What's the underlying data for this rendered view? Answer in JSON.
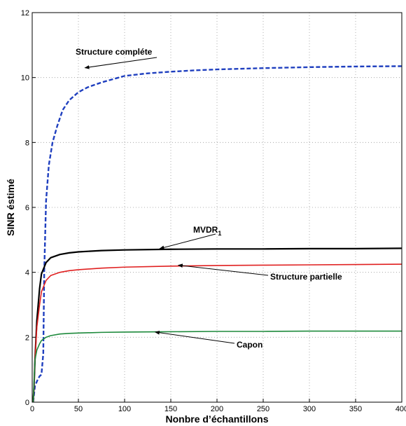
{
  "chart_data": {
    "type": "line",
    "xlabel": "Nonbre d’échantillons",
    "ylabel": "SINR éstimé",
    "xlim": [
      0,
      400
    ],
    "ylim": [
      0,
      12
    ],
    "xticks": [
      0,
      50,
      100,
      150,
      200,
      250,
      300,
      350,
      400
    ],
    "yticks": [
      0,
      2,
      4,
      6,
      8,
      10,
      12
    ],
    "grid": true,
    "series": [
      {
        "name": "Structure compléte",
        "color": "#1f3fbf",
        "dash": "dashed",
        "x": [
          1,
          3,
          6,
          8,
          10,
          12,
          13,
          15,
          18,
          22,
          27,
          33,
          40,
          50,
          60,
          75,
          90,
          100,
          125,
          150,
          175,
          200,
          250,
          300,
          350,
          400
        ],
        "y": [
          0,
          0.5,
          0.7,
          0.8,
          0.85,
          1.5,
          4.0,
          6.2,
          7.3,
          8.0,
          8.5,
          9.0,
          9.3,
          9.55,
          9.7,
          9.85,
          9.97,
          10.05,
          10.13,
          10.18,
          10.22,
          10.25,
          10.29,
          10.32,
          10.34,
          10.35
        ]
      },
      {
        "name": "MVDR1",
        "color": "#000000",
        "dash": "solid",
        "x": [
          1,
          2,
          3,
          5,
          8,
          10,
          15,
          20,
          30,
          40,
          50,
          75,
          100,
          150,
          200,
          250,
          300,
          350,
          400
        ],
        "y": [
          0,
          0.5,
          1.3,
          2.5,
          3.5,
          3.95,
          4.3,
          4.45,
          4.55,
          4.6,
          4.63,
          4.67,
          4.69,
          4.71,
          4.72,
          4.72,
          4.73,
          4.73,
          4.74
        ]
      },
      {
        "name": "Structure partielle",
        "color": "#e02020",
        "dash": "solid",
        "x": [
          1,
          2,
          3,
          5,
          8,
          10,
          15,
          20,
          30,
          40,
          50,
          75,
          100,
          150,
          200,
          250,
          300,
          350,
          400
        ],
        "y": [
          0,
          0.5,
          1.3,
          2.3,
          3.0,
          3.4,
          3.75,
          3.9,
          4.0,
          4.05,
          4.08,
          4.13,
          4.16,
          4.19,
          4.21,
          4.22,
          4.23,
          4.24,
          4.25
        ]
      },
      {
        "name": "Capon",
        "color": "#1e8a3c",
        "dash": "solid",
        "x": [
          1,
          2,
          3,
          5,
          8,
          10,
          15,
          20,
          30,
          40,
          50,
          75,
          100,
          150,
          200,
          250,
          300,
          350,
          400
        ],
        "y": [
          0,
          0.6,
          1.3,
          1.6,
          1.8,
          1.9,
          2.0,
          2.05,
          2.1,
          2.12,
          2.13,
          2.15,
          2.16,
          2.17,
          2.18,
          2.18,
          2.19,
          2.19,
          2.19
        ]
      }
    ],
    "annotations": [
      {
        "series": "Structure compléte",
        "text": "Structure compléte",
        "point": [
          57,
          10.3
        ],
        "anchor": [
          118,
          10.7
        ]
      },
      {
        "series": "MVDR1",
        "text": "MVDR",
        "subscript": "1",
        "point": [
          138,
          4.73
        ],
        "anchor": [
          118,
          5.05
        ]
      },
      {
        "series": "Structure partielle",
        "text": "Structure partielle",
        "point": [
          158,
          4.22
        ],
        "anchor": [
          172,
          3.9
        ]
      },
      {
        "series": "Capon",
        "text": "Capon",
        "point": [
          133,
          2.16
        ],
        "anchor": [
          148,
          1.75
        ]
      }
    ]
  }
}
